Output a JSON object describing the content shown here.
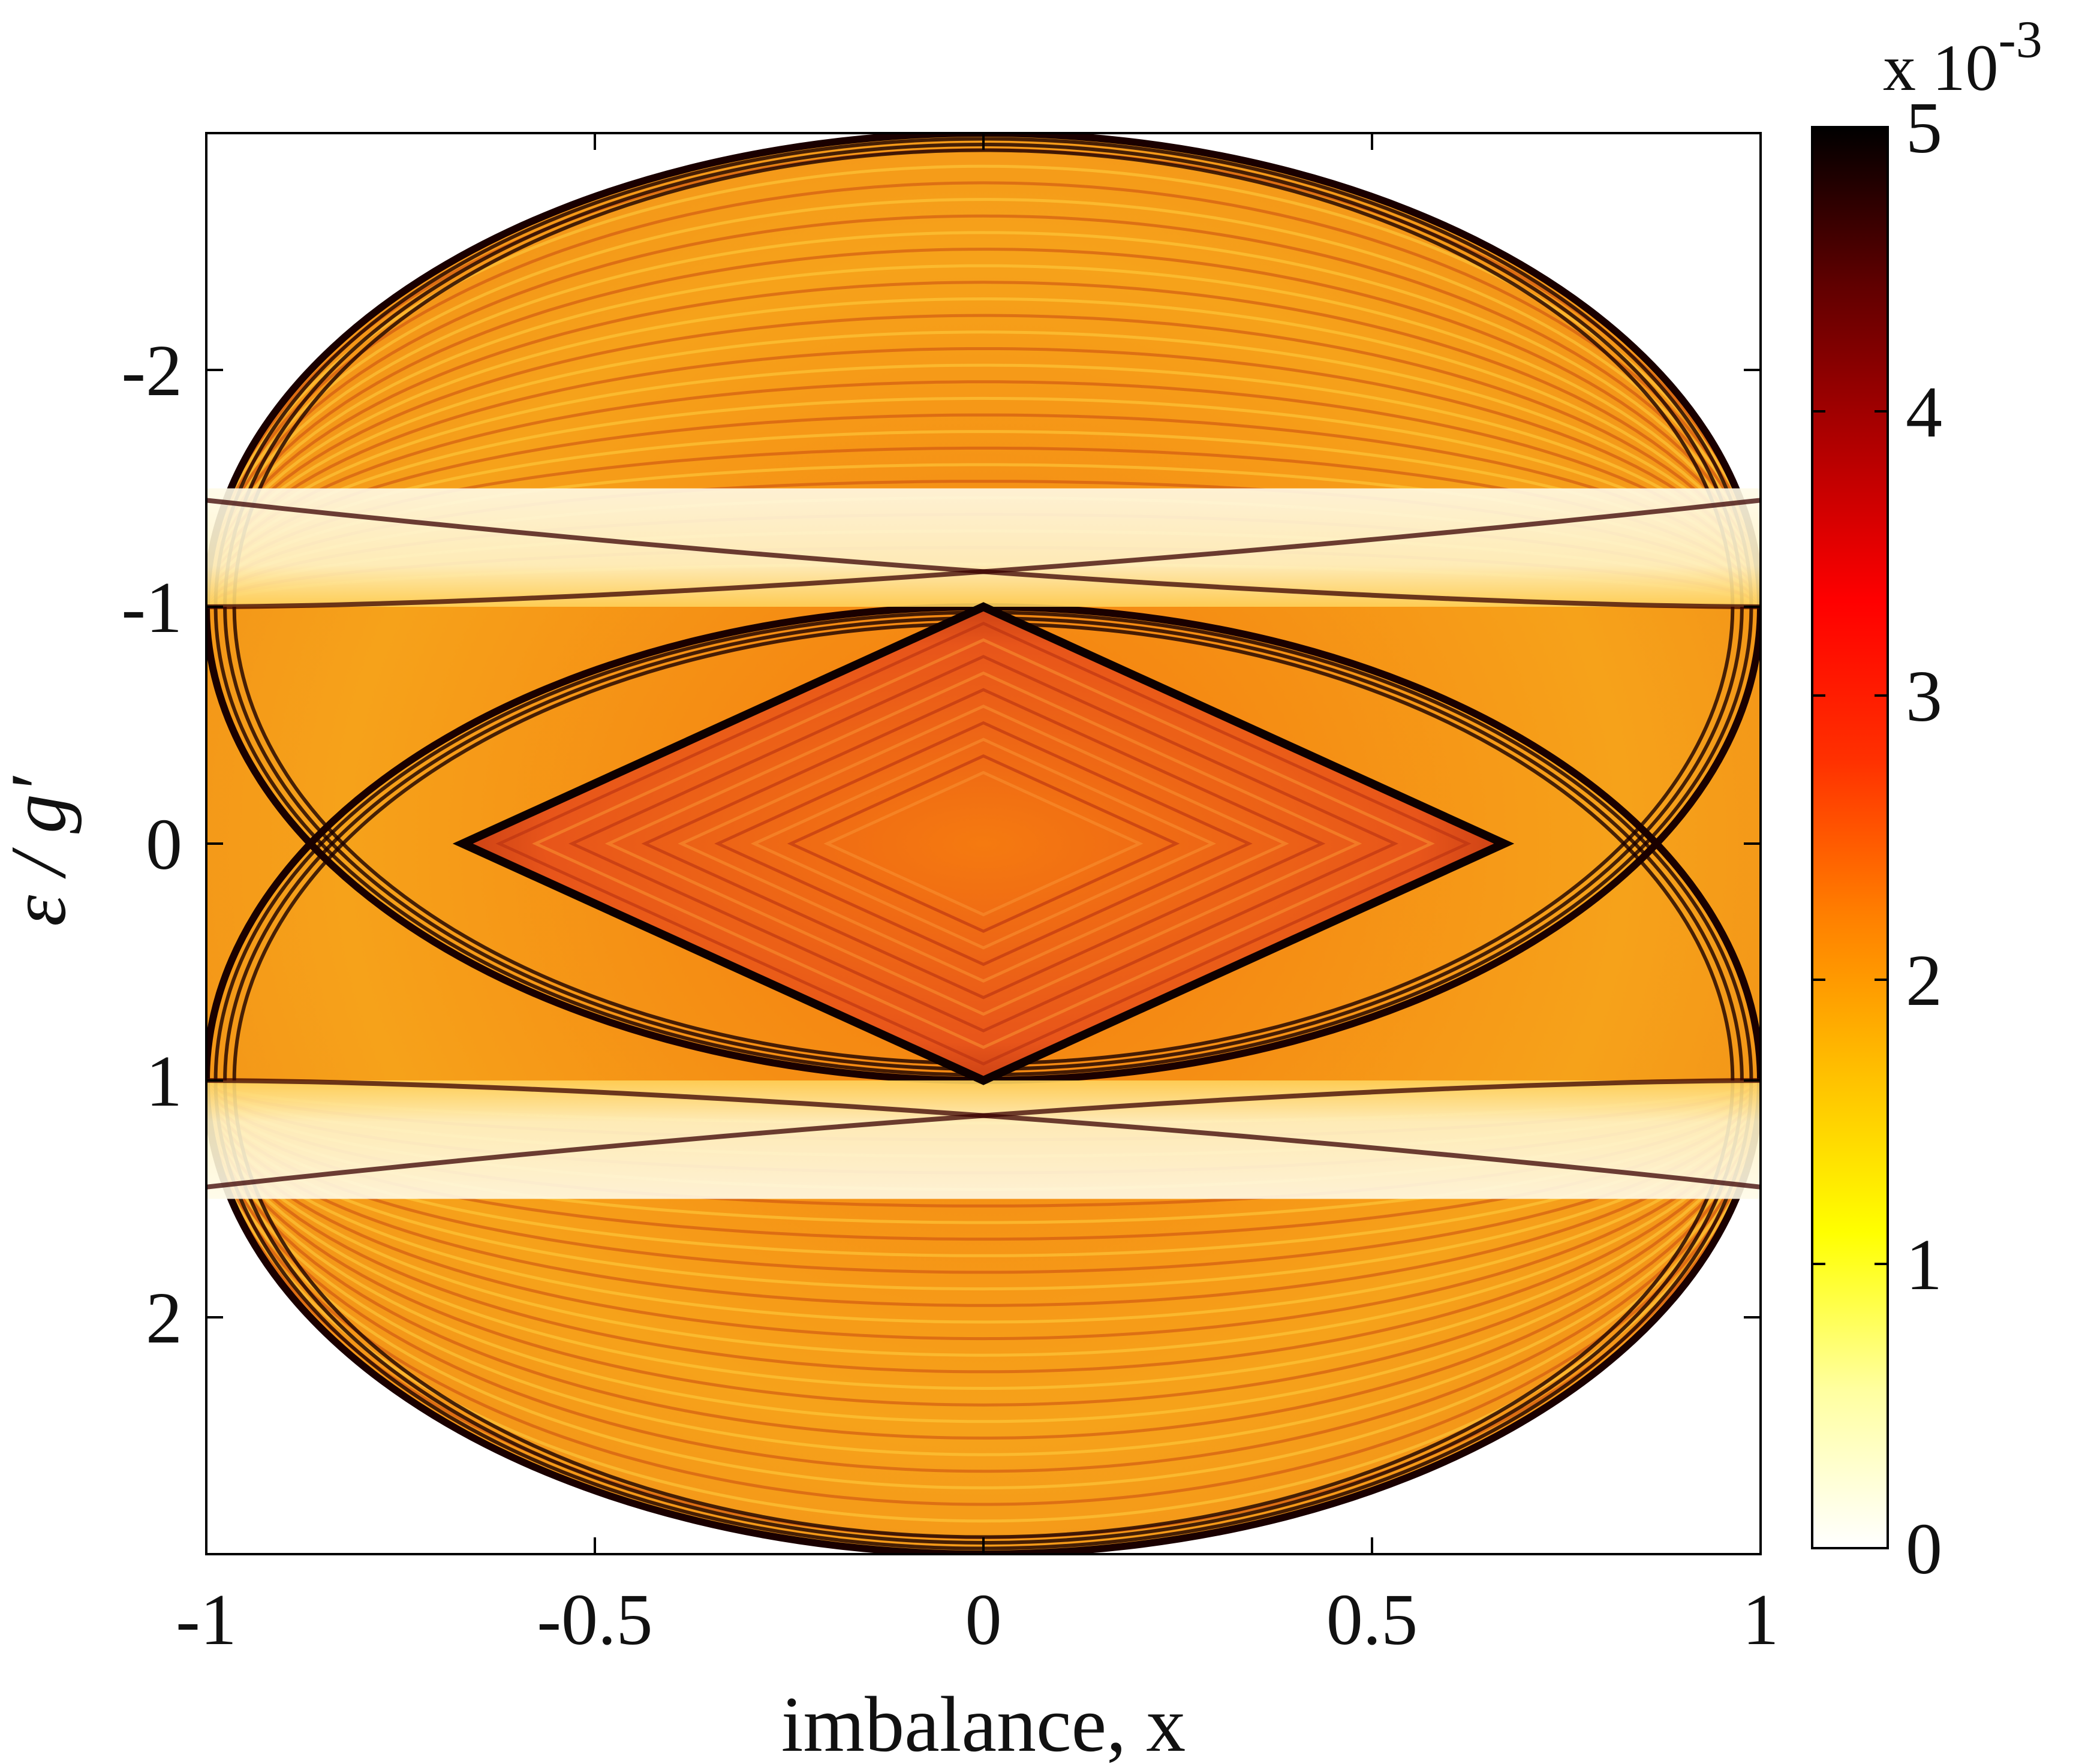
{
  "chart_data": {
    "type": "heatmap",
    "title": "",
    "xlabel": "imbalance, x",
    "ylabel": "ε / g′",
    "xlim": [
      -1,
      1
    ],
    "ylim": [
      -3,
      3
    ],
    "y_axis_reversed": true,
    "x_ticks": [
      {
        "value": -1,
        "label": "-1"
      },
      {
        "value": -0.5,
        "label": "-0.5"
      },
      {
        "value": 0,
        "label": "0"
      },
      {
        "value": 0.5,
        "label": "0.5"
      },
      {
        "value": 1,
        "label": "1"
      }
    ],
    "y_ticks": [
      {
        "value": -2,
        "label": "-2"
      },
      {
        "value": -1,
        "label": "-1"
      },
      {
        "value": 0,
        "label": "0"
      },
      {
        "value": 1,
        "label": "1"
      },
      {
        "value": 2,
        "label": "2"
      }
    ],
    "colorbar": {
      "min": 0,
      "max": 5,
      "scale_label_base": "x 10",
      "scale_label_exponent": "-3",
      "ticks": [
        {
          "value": 0,
          "label": "0"
        },
        {
          "value": 1,
          "label": "1"
        },
        {
          "value": 2,
          "label": "2"
        },
        {
          "value": 3,
          "label": "3"
        },
        {
          "value": 4,
          "label": "4"
        },
        {
          "value": 5,
          "label": "5"
        }
      ],
      "colormap": [
        "#ffffff",
        "#ffffa0",
        "#ffff00",
        "#ffc000",
        "#ff8000",
        "#ff3000",
        "#ff0000",
        "#b00000",
        "#600000",
        "#000000"
      ]
    },
    "features": {
      "outer_boundary_curves_center_eps": [
        -1,
        1
      ],
      "outer_boundary_half_width": 2,
      "inner_diamond_vertices": [
        [
          0,
          -1
        ],
        [
          0.67,
          0
        ],
        [
          0,
          1
        ],
        [
          -0.67,
          0
        ]
      ],
      "pale_bands_eps": [
        [
          -1.5,
          -1
        ],
        [
          1,
          1.5
        ]
      ],
      "background_value": 2.2
    }
  }
}
